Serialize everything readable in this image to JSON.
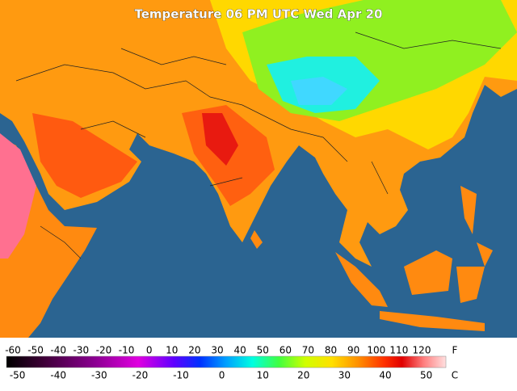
{
  "title": "Temperature 06 PM UTC Wed Apr 20",
  "legend": {
    "fahrenheit": {
      "unit": "F",
      "labels": [
        -60,
        -50,
        -40,
        -30,
        -20,
        -10,
        0,
        10,
        20,
        30,
        40,
        50,
        60,
        70,
        80,
        90,
        100,
        110,
        120
      ]
    },
    "celsius": {
      "unit": "C",
      "labels": [
        -50,
        -40,
        -30,
        -20,
        -10,
        0,
        10,
        20,
        30,
        40,
        50
      ]
    }
  }
}
